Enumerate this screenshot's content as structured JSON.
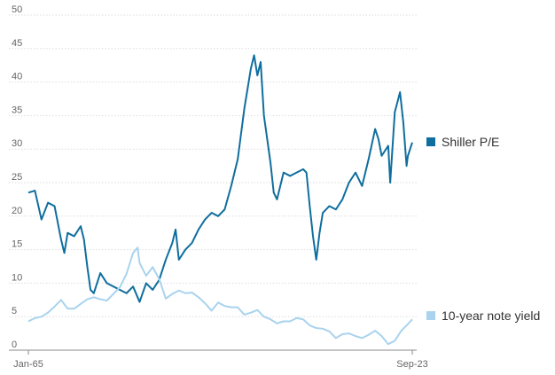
{
  "chart_data": {
    "type": "line",
    "x_tick_labels": [
      "Jan-65",
      "Sep-23"
    ],
    "x_range": [
      1965.0,
      2023.67
    ],
    "ylim": [
      0,
      50
    ],
    "y_ticks": [
      0,
      5,
      10,
      15,
      20,
      25,
      30,
      35,
      40,
      45,
      50
    ],
    "grid": "horizontal",
    "legend_placement": "right, at line ends",
    "series": [
      {
        "name": "Shiller P/E",
        "color": "#0f6e9e",
        "points": [
          [
            1965.0,
            23.5
          ],
          [
            1966.0,
            23.8
          ],
          [
            1967.0,
            19.5
          ],
          [
            1968.0,
            22.0
          ],
          [
            1969.0,
            21.5
          ],
          [
            1970.0,
            16.5
          ],
          [
            1970.5,
            14.5
          ],
          [
            1971.0,
            17.5
          ],
          [
            1972.0,
            17.0
          ],
          [
            1973.0,
            18.5
          ],
          [
            1973.5,
            16.5
          ],
          [
            1974.0,
            12.5
          ],
          [
            1974.5,
            9.0
          ],
          [
            1975.0,
            8.5
          ],
          [
            1976.0,
            11.5
          ],
          [
            1977.0,
            10.0
          ],
          [
            1978.0,
            9.5
          ],
          [
            1979.0,
            9.0
          ],
          [
            1980.0,
            8.5
          ],
          [
            1981.0,
            9.5
          ],
          [
            1982.0,
            7.2
          ],
          [
            1983.0,
            10.0
          ],
          [
            1984.0,
            9.0
          ],
          [
            1985.0,
            10.5
          ],
          [
            1986.0,
            13.5
          ],
          [
            1987.0,
            16.0
          ],
          [
            1987.5,
            18.0
          ],
          [
            1988.0,
            13.5
          ],
          [
            1989.0,
            15.0
          ],
          [
            1990.0,
            16.0
          ],
          [
            1991.0,
            18.0
          ],
          [
            1992.0,
            19.5
          ],
          [
            1993.0,
            20.5
          ],
          [
            1994.0,
            20.0
          ],
          [
            1995.0,
            21.0
          ],
          [
            1996.0,
            24.5
          ],
          [
            1997.0,
            28.5
          ],
          [
            1998.0,
            36.0
          ],
          [
            1999.0,
            42.0
          ],
          [
            1999.5,
            44.0
          ],
          [
            2000.0,
            41.0
          ],
          [
            2000.5,
            43.0
          ],
          [
            2001.0,
            35.0
          ],
          [
            2002.0,
            28.0
          ],
          [
            2002.5,
            23.5
          ],
          [
            2003.0,
            22.5
          ],
          [
            2004.0,
            26.5
          ],
          [
            2005.0,
            26.0
          ],
          [
            2006.0,
            26.5
          ],
          [
            2007.0,
            27.0
          ],
          [
            2007.5,
            26.5
          ],
          [
            2008.0,
            21.5
          ],
          [
            2008.5,
            17.0
          ],
          [
            2009.0,
            13.5
          ],
          [
            2009.5,
            17.5
          ],
          [
            2010.0,
            20.5
          ],
          [
            2011.0,
            21.5
          ],
          [
            2012.0,
            21.0
          ],
          [
            2013.0,
            22.5
          ],
          [
            2014.0,
            25.0
          ],
          [
            2015.0,
            26.5
          ],
          [
            2016.0,
            24.5
          ],
          [
            2017.0,
            28.5
          ],
          [
            2018.0,
            33.0
          ],
          [
            2018.5,
            31.5
          ],
          [
            2019.0,
            29.0
          ],
          [
            2020.0,
            30.5
          ],
          [
            2020.3,
            25.0
          ],
          [
            2021.0,
            35.5
          ],
          [
            2021.8,
            38.5
          ],
          [
            2022.3,
            34.0
          ],
          [
            2022.8,
            27.5
          ],
          [
            2023.0,
            29.0
          ],
          [
            2023.67,
            31.0
          ]
        ]
      },
      {
        "name": "10-year note yield",
        "color": "#a9d3ee",
        "points": [
          [
            1965.0,
            4.3
          ],
          [
            1966.0,
            4.8
          ],
          [
            1967.0,
            5.0
          ],
          [
            1968.0,
            5.6
          ],
          [
            1969.0,
            6.5
          ],
          [
            1970.0,
            7.5
          ],
          [
            1971.0,
            6.2
          ],
          [
            1972.0,
            6.2
          ],
          [
            1973.0,
            6.9
          ],
          [
            1974.0,
            7.6
          ],
          [
            1975.0,
            7.9
          ],
          [
            1976.0,
            7.6
          ],
          [
            1977.0,
            7.4
          ],
          [
            1978.0,
            8.4
          ],
          [
            1979.0,
            9.4
          ],
          [
            1980.0,
            11.4
          ],
          [
            1981.0,
            14.5
          ],
          [
            1981.7,
            15.3
          ],
          [
            1982.0,
            13.0
          ],
          [
            1983.0,
            11.1
          ],
          [
            1984.0,
            12.4
          ],
          [
            1985.0,
            10.6
          ],
          [
            1986.0,
            7.7
          ],
          [
            1987.0,
            8.4
          ],
          [
            1988.0,
            8.9
          ],
          [
            1989.0,
            8.5
          ],
          [
            1990.0,
            8.6
          ],
          [
            1991.0,
            7.9
          ],
          [
            1992.0,
            7.0
          ],
          [
            1993.0,
            5.9
          ],
          [
            1994.0,
            7.1
          ],
          [
            1995.0,
            6.6
          ],
          [
            1996.0,
            6.4
          ],
          [
            1997.0,
            6.4
          ],
          [
            1998.0,
            5.3
          ],
          [
            1999.0,
            5.6
          ],
          [
            2000.0,
            6.0
          ],
          [
            2001.0,
            5.0
          ],
          [
            2002.0,
            4.6
          ],
          [
            2003.0,
            4.0
          ],
          [
            2004.0,
            4.3
          ],
          [
            2005.0,
            4.3
          ],
          [
            2006.0,
            4.8
          ],
          [
            2007.0,
            4.6
          ],
          [
            2008.0,
            3.7
          ],
          [
            2009.0,
            3.3
          ],
          [
            2010.0,
            3.2
          ],
          [
            2011.0,
            2.8
          ],
          [
            2012.0,
            1.8
          ],
          [
            2013.0,
            2.4
          ],
          [
            2014.0,
            2.5
          ],
          [
            2015.0,
            2.1
          ],
          [
            2016.0,
            1.8
          ],
          [
            2017.0,
            2.3
          ],
          [
            2018.0,
            2.9
          ],
          [
            2019.0,
            2.1
          ],
          [
            2020.0,
            0.9
          ],
          [
            2021.0,
            1.4
          ],
          [
            2022.0,
            2.9
          ],
          [
            2023.0,
            3.9
          ],
          [
            2023.67,
            4.6
          ]
        ]
      }
    ]
  }
}
